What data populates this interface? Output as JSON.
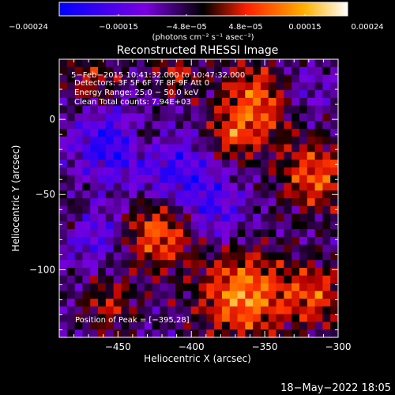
{
  "chart_data": {
    "type": "heatmap",
    "title": "Reconstructed RHESSI Image",
    "xlabel": "Heliocentric X (arcsec)",
    "ylabel": "Heliocentric Y (arcsec)",
    "xlim": [
      -490,
      -300
    ],
    "ylim": [
      -145,
      40
    ],
    "x_ticks": [
      -450,
      -400,
      -350,
      -300
    ],
    "x_tick_labels": [
      "−450",
      "−400",
      "−350",
      "−300"
    ],
    "y_ticks": [
      0,
      -50,
      -100
    ],
    "y_tick_labels": [
      "0",
      "−50",
      "−100"
    ],
    "colorbar": {
      "range": [
        -0.00024,
        0.00024
      ],
      "tick_labels": [
        "−0.00024",
        "−0.00015",
        "−4.8e−05",
        "4.8e−05",
        "0.00015",
        "0.00024"
      ],
      "unit_label": "(photons cm⁻² s⁻¹ asec⁻²)",
      "colors": [
        "#0000ff",
        "#7a00e0",
        "#000000",
        "#ff2000",
        "#ffb000",
        "#ffffff"
      ]
    },
    "annotations": {
      "time": "5−Feb−2015 10:41:32.000 to 10:47:32.000",
      "detectors": "Detectors: 3F 5F 6F 7F 8F 9F Att 0",
      "energy": "Energy Range: 25.0 − 50.0 keV",
      "clean": "Clean     Total counts: 7.94E+03",
      "peak": "Position of Peak = [−395,28]"
    },
    "footer": "18−May−2022 18:05"
  }
}
